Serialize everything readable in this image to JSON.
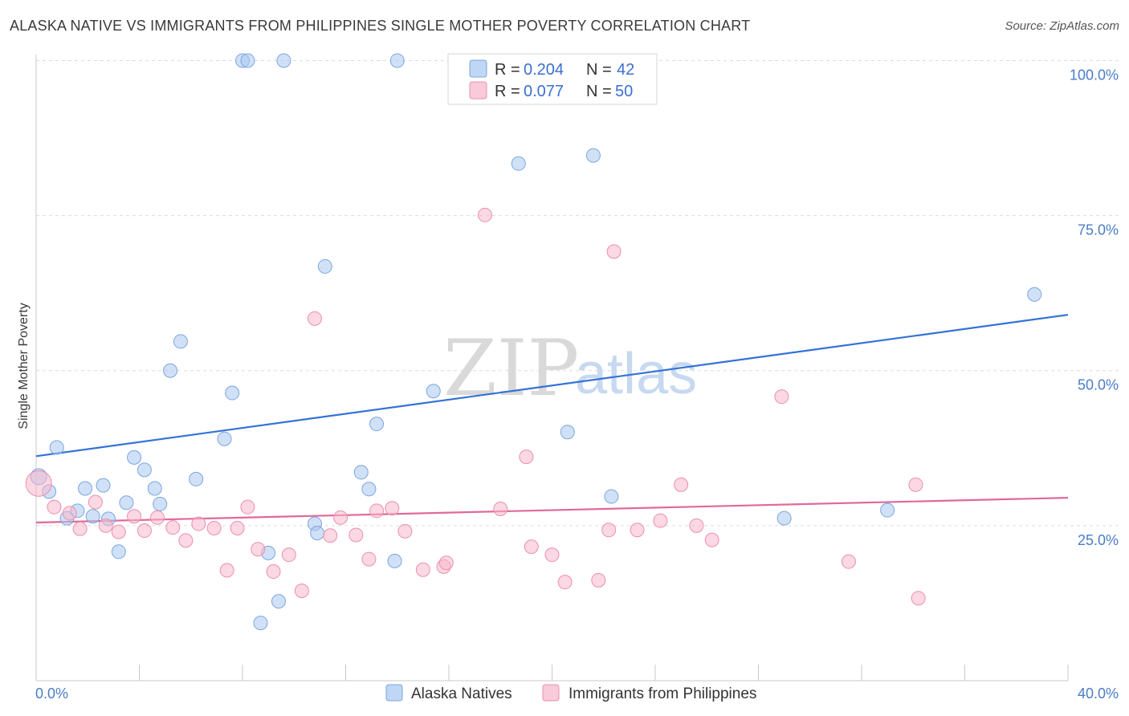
{
  "header": {
    "title": "ALASKA NATIVE VS IMMIGRANTS FROM PHILIPPINES SINGLE MOTHER POVERTY CORRELATION CHART",
    "source": "Source: ZipAtlas.com"
  },
  "watermark": {
    "zip": "ZIP",
    "atlas": "atlas"
  },
  "legend": {
    "r_label": "R =",
    "n_label": "N =",
    "entries": [
      {
        "r": "0.204",
        "n": "42",
        "color": "#aac8f0"
      },
      {
        "r": "0.077",
        "n": "50",
        "color": "#f7b8cc"
      }
    ]
  },
  "chart_data": {
    "type": "scatter",
    "title": "ALASKA NATIVE VS IMMIGRANTS FROM PHILIPPINES SINGLE MOTHER POVERTY CORRELATION CHART",
    "xlabel": "",
    "ylabel": "Single Mother Poverty",
    "xlim": [
      0,
      40
    ],
    "ylim": [
      0,
      102
    ],
    "x_tick_labels": [
      "0.0%",
      "40.0%"
    ],
    "y_ticks": [
      25,
      50,
      75,
      100
    ],
    "y_tick_labels": [
      "25.0%",
      "50.0%",
      "75.0%",
      "100.0%"
    ],
    "grid": true,
    "legend_position": "top-center",
    "series": [
      {
        "name": "Alaska Natives",
        "color": "#aac8f0",
        "stroke": "#7aa6e0",
        "trend_color": "#3472d6",
        "trend": {
          "x": [
            0,
            40
          ],
          "y": [
            36.2,
            59.0
          ]
        },
        "points": [
          [
            0.1,
            32.9
          ],
          [
            0.5,
            30.5
          ],
          [
            0.8,
            37.6
          ],
          [
            1.2,
            26.2
          ],
          [
            1.6,
            27.4
          ],
          [
            1.9,
            31.0
          ],
          [
            2.2,
            26.5
          ],
          [
            2.6,
            31.5
          ],
          [
            2.8,
            26.1
          ],
          [
            3.2,
            20.8
          ],
          [
            3.5,
            28.7
          ],
          [
            3.8,
            36.0
          ],
          [
            4.2,
            34.0
          ],
          [
            4.6,
            31.0
          ],
          [
            4.8,
            28.5
          ],
          [
            5.2,
            50.0
          ],
          [
            5.6,
            54.7
          ],
          [
            6.2,
            32.5
          ],
          [
            7.3,
            39.0
          ],
          [
            7.6,
            46.4
          ],
          [
            8.0,
            100.0
          ],
          [
            8.2,
            100.0
          ],
          [
            8.7,
            9.3
          ],
          [
            9.0,
            20.6
          ],
          [
            9.4,
            12.8
          ],
          [
            9.6,
            100.0
          ],
          [
            10.8,
            25.3
          ],
          [
            10.9,
            23.8
          ],
          [
            11.2,
            66.8
          ],
          [
            12.6,
            33.6
          ],
          [
            12.9,
            30.9
          ],
          [
            13.2,
            41.4
          ],
          [
            13.9,
            19.3
          ],
          [
            14.0,
            100.0
          ],
          [
            15.4,
            46.7
          ],
          [
            18.7,
            83.4
          ],
          [
            20.6,
            40.1
          ],
          [
            21.6,
            84.7
          ],
          [
            22.3,
            29.7
          ],
          [
            29.0,
            26.2
          ],
          [
            33.0,
            27.5
          ],
          [
            38.7,
            62.3
          ]
        ]
      },
      {
        "name": "Immigrants from Philippines",
        "color": "#f7b8cc",
        "stroke": "#ec8fab",
        "trend_color": "#e0699a",
        "trend": {
          "x": [
            0,
            40
          ],
          "y": [
            25.5,
            29.5
          ]
        },
        "points": [
          [
            0.1,
            31.8
          ],
          [
            0.7,
            28.0
          ],
          [
            1.3,
            27.0
          ],
          [
            1.7,
            24.5
          ],
          [
            2.3,
            28.8
          ],
          [
            2.7,
            25.0
          ],
          [
            3.2,
            24.0
          ],
          [
            3.8,
            26.5
          ],
          [
            4.2,
            24.2
          ],
          [
            4.7,
            26.3
          ],
          [
            5.3,
            24.7
          ],
          [
            5.8,
            22.6
          ],
          [
            6.3,
            25.3
          ],
          [
            6.9,
            24.6
          ],
          [
            7.4,
            17.8
          ],
          [
            7.8,
            24.6
          ],
          [
            8.2,
            28.0
          ],
          [
            8.6,
            21.2
          ],
          [
            9.2,
            17.6
          ],
          [
            9.8,
            20.3
          ],
          [
            10.3,
            14.5
          ],
          [
            10.8,
            58.4
          ],
          [
            11.4,
            23.4
          ],
          [
            11.8,
            26.3
          ],
          [
            12.4,
            23.5
          ],
          [
            12.9,
            19.6
          ],
          [
            13.2,
            27.4
          ],
          [
            13.8,
            27.8
          ],
          [
            14.3,
            24.1
          ],
          [
            15.0,
            17.9
          ],
          [
            15.8,
            18.4
          ],
          [
            15.9,
            19.0
          ],
          [
            17.4,
            75.1
          ],
          [
            18.0,
            27.7
          ],
          [
            19.0,
            36.1
          ],
          [
            19.2,
            21.6
          ],
          [
            20.0,
            20.3
          ],
          [
            20.5,
            15.9
          ],
          [
            21.8,
            16.2
          ],
          [
            22.2,
            24.3
          ],
          [
            22.4,
            69.2
          ],
          [
            23.3,
            24.3
          ],
          [
            24.2,
            25.8
          ],
          [
            25.0,
            31.6
          ],
          [
            25.6,
            25.0
          ],
          [
            26.2,
            22.7
          ],
          [
            28.9,
            45.8
          ],
          [
            31.5,
            19.2
          ],
          [
            34.1,
            31.6
          ],
          [
            34.2,
            13.3
          ]
        ]
      }
    ]
  }
}
